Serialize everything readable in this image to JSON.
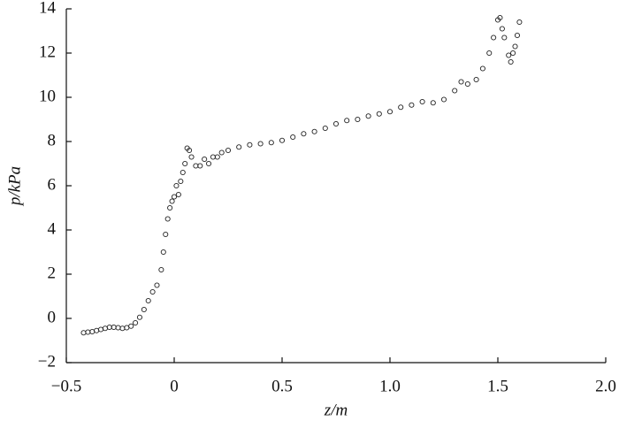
{
  "chart_data": {
    "type": "scatter",
    "xlabel": "z/m",
    "ylabel": "p/kPa",
    "x": [
      -0.42,
      -0.4,
      -0.38,
      -0.36,
      -0.34,
      -0.32,
      -0.3,
      -0.28,
      -0.26,
      -0.24,
      -0.22,
      -0.2,
      -0.18,
      -0.16,
      -0.14,
      -0.12,
      -0.1,
      -0.08,
      -0.06,
      -0.05,
      -0.04,
      -0.03,
      -0.02,
      -0.01,
      0.0,
      0.01,
      0.02,
      0.03,
      0.04,
      0.05,
      0.06,
      0.07,
      0.08,
      0.1,
      0.12,
      0.14,
      0.16,
      0.18,
      0.2,
      0.22,
      0.25,
      0.3,
      0.35,
      0.4,
      0.45,
      0.5,
      0.55,
      0.6,
      0.65,
      0.7,
      0.75,
      0.8,
      0.85,
      0.9,
      0.95,
      1.0,
      1.05,
      1.1,
      1.15,
      1.2,
      1.25,
      1.3,
      1.33,
      1.36,
      1.4,
      1.43,
      1.46,
      1.48,
      1.5,
      1.51,
      1.52,
      1.53,
      1.55,
      1.56,
      1.57,
      1.58,
      1.59,
      1.6
    ],
    "values": [
      -0.65,
      -0.62,
      -0.6,
      -0.55,
      -0.5,
      -0.45,
      -0.4,
      -0.4,
      -0.42,
      -0.45,
      -0.42,
      -0.35,
      -0.2,
      0.05,
      0.4,
      0.8,
      1.2,
      1.5,
      2.2,
      3.0,
      3.8,
      4.5,
      5.0,
      5.3,
      5.5,
      6.0,
      5.6,
      6.2,
      6.6,
      7.0,
      7.7,
      7.6,
      7.3,
      6.9,
      6.9,
      7.2,
      7.0,
      7.3,
      7.3,
      7.5,
      7.6,
      7.75,
      7.85,
      7.9,
      7.95,
      8.05,
      8.2,
      8.35,
      8.45,
      8.6,
      8.8,
      8.95,
      9.0,
      9.15,
      9.25,
      9.35,
      9.55,
      9.65,
      9.8,
      9.75,
      9.9,
      10.3,
      10.7,
      10.6,
      10.8,
      11.3,
      12.0,
      12.7,
      13.5,
      13.6,
      13.1,
      12.7,
      11.9,
      11.6,
      12.0,
      12.3,
      12.8,
      13.4
    ],
    "color": "#222222",
    "xlim": [
      -0.5,
      2.0
    ],
    "xticks": [
      {
        "value": -0.5,
        "label": "−0.5"
      },
      0,
      0.5,
      {
        "value": 1,
        "label": "1.0"
      },
      1.5,
      {
        "value": 2,
        "label": "2.0"
      }
    ],
    "ylim": [
      -2,
      14
    ],
    "yticks": [
      {
        "value": -2,
        "label": "−2"
      },
      0,
      2,
      4,
      6,
      8,
      10,
      12,
      14
    ]
  }
}
